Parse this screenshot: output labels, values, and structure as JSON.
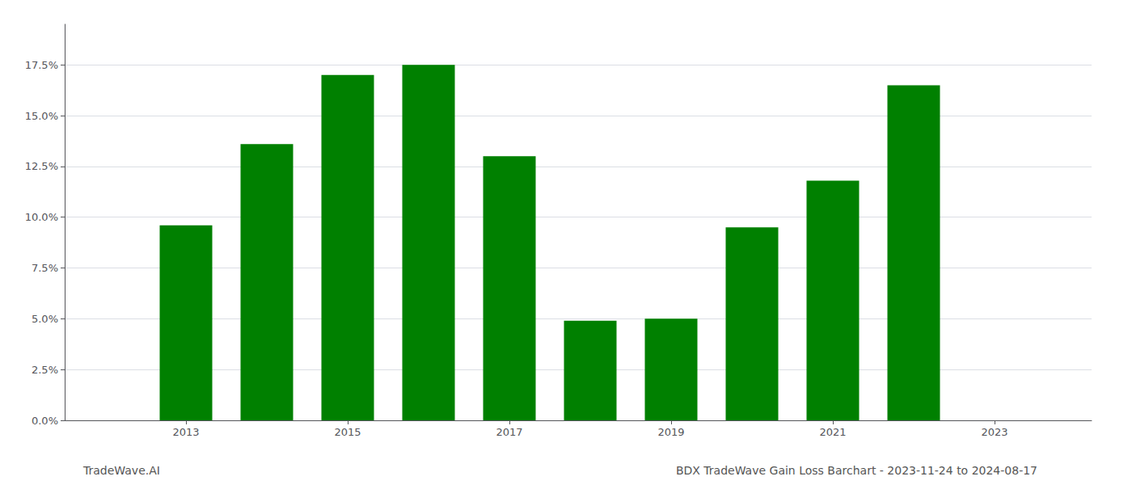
{
  "chart_data": {
    "type": "bar",
    "title": "BDX TradeWave Gain Loss Barchart - 2023-11-24 to 2024-08-17",
    "annotations": [
      "TradeWave.AI"
    ],
    "x": [
      2013,
      2014,
      2015,
      2016,
      2017,
      2018,
      2019,
      2020,
      2021,
      2022
    ],
    "values": [
      0.096,
      0.136,
      0.17,
      0.175,
      0.13,
      0.049,
      0.05,
      0.095,
      0.118,
      0.165
    ],
    "color": "#008000",
    "xlim": [
      2011.5,
      2024.2
    ],
    "xticks": [
      2013,
      2015,
      2017,
      2019,
      2021,
      2023
    ],
    "ylim": [
      0,
      0.195
    ],
    "yticks": [
      {
        "value": 0.0,
        "label": "0.0%"
      },
      {
        "value": 0.025,
        "label": "2.5%"
      },
      {
        "value": 0.05,
        "label": "5.0%"
      },
      {
        "value": 0.075,
        "label": "7.5%"
      },
      {
        "value": 0.1,
        "label": "10.0%"
      },
      {
        "value": 0.125,
        "label": "12.5%"
      },
      {
        "value": 0.15,
        "label": "15.0%"
      },
      {
        "value": 0.175,
        "label": "17.5%"
      }
    ],
    "grid": true
  }
}
